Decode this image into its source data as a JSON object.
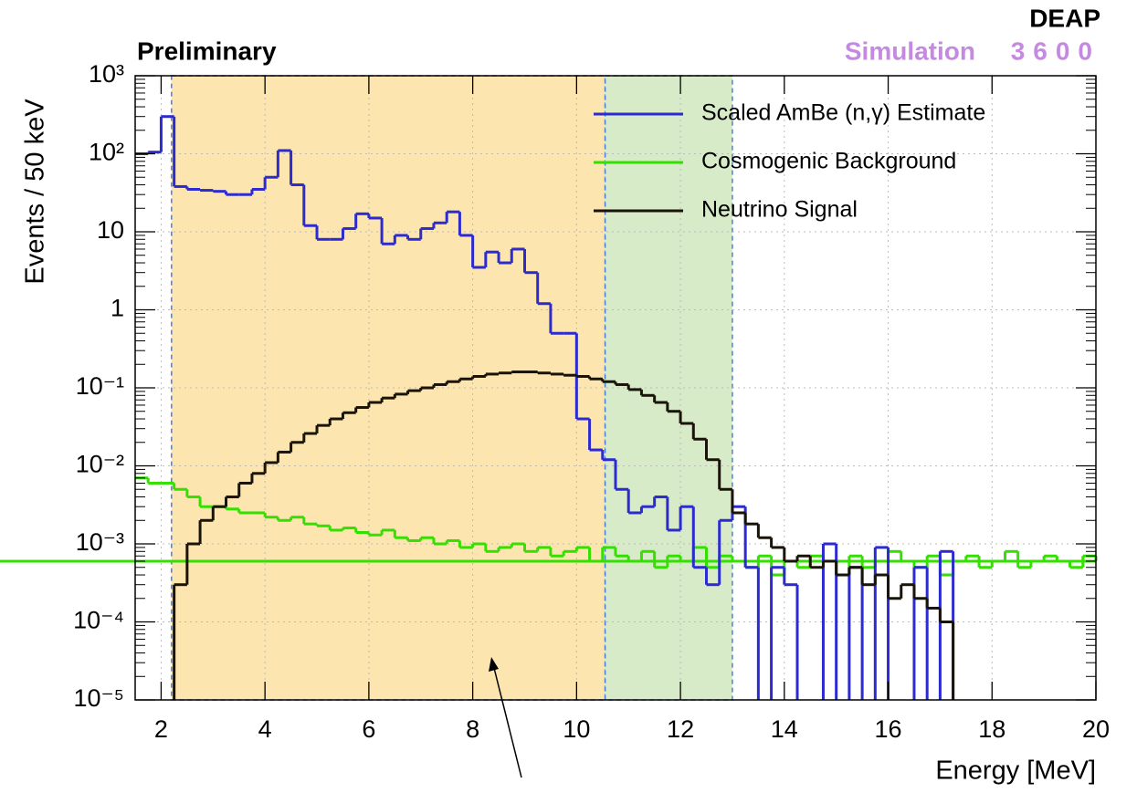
{
  "chart_data": {
    "type": "histogram",
    "title": "Preliminary",
    "experiment": "DEAP",
    "subtitle": "Simulation",
    "detector": "3600",
    "xlabel": "Energy [MeV]",
    "ylabel": "Events / 50 keV",
    "log_y": true,
    "grid": true,
    "legend": "upper right",
    "xlim": [
      1.5,
      20
    ],
    "ylim": [
      1e-05,
      1000
    ],
    "xticks": [
      2,
      4,
      6,
      8,
      10,
      12,
      14,
      16,
      18,
      20
    ],
    "yticks": [
      {
        "value": 1e-05,
        "label": "10⁻⁵"
      },
      {
        "value": 0.0001,
        "label": "10⁻⁴"
      },
      {
        "value": 0.001,
        "label": "10⁻³"
      },
      {
        "value": 0.01,
        "label": "10⁻²"
      },
      {
        "value": 0.1,
        "label": "10⁻¹"
      },
      1,
      10,
      {
        "value": 100,
        "label": "10²"
      },
      {
        "value": 1000,
        "label": "10³"
      }
    ],
    "regions": [
      {
        "xlim": [
          2.2,
          10.55
        ],
        "color": "#fde5b0"
      },
      {
        "xlim": [
          10.55,
          13.0
        ],
        "color": "#d8ebc9"
      }
    ],
    "bins": [
      1.5,
      1.75,
      2,
      2.25,
      2.5,
      2.75,
      3,
      3.25,
      3.5,
      3.75,
      4,
      4.25,
      4.5,
      4.75,
      5,
      5.25,
      5.5,
      5.75,
      6,
      6.25,
      6.5,
      6.75,
      7,
      7.25,
      7.5,
      7.75,
      8,
      8.25,
      8.5,
      8.75,
      9,
      9.25,
      9.5,
      9.75,
      10,
      10.25,
      10.5,
      10.75,
      11,
      11.25,
      11.5,
      11.75,
      12,
      12.25,
      12.5,
      12.75,
      13,
      13.25,
      13.5,
      13.75,
      14,
      14.25,
      14.5,
      14.75,
      15,
      15.25,
      15.5,
      15.75,
      16,
      16.25,
      16.5,
      16.75,
      17,
      17.25,
      17.5,
      17.75,
      18,
      18.25,
      18.5,
      18.75,
      19,
      19.25,
      19.5,
      19.75,
      20
    ],
    "series": [
      {
        "name": "Scaled AmBe (n,γ) Estimate",
        "color": "#2b2bd0",
        "values": [
          100,
          105,
          300,
          38,
          35,
          34,
          33,
          30,
          30,
          35,
          50,
          110,
          40,
          12,
          8,
          8,
          11,
          17,
          15,
          7,
          9,
          8,
          11,
          13,
          18,
          9,
          3.5,
          5.5,
          4,
          6,
          3,
          1.2,
          0.5,
          0.5,
          0.04,
          0.016,
          0.012,
          0.005,
          0.0025,
          0.003,
          0.004,
          0.0015,
          0.003,
          0.0005,
          0.0003,
          0.002,
          0.003,
          0.0005,
          null,
          0.0005,
          0.0003,
          null,
          null,
          0.001,
          null,
          0.0005,
          null,
          0.0009,
          null,
          null,
          0.0005,
          null,
          0.0008,
          null,
          null,
          null,
          null,
          null,
          null,
          null,
          null,
          null,
          null,
          null,
          null
        ]
      },
      {
        "name": "Cosmogenic Background",
        "color": "#33e000",
        "values": [
          0.007,
          0.006,
          0.006,
          0.005,
          0.004,
          0.003,
          0.003,
          0.0028,
          0.0025,
          0.0025,
          0.0022,
          0.002,
          0.0022,
          0.0018,
          0.0017,
          0.0015,
          0.0016,
          0.0014,
          0.0013,
          0.0015,
          0.0012,
          0.0011,
          0.0012,
          0.001,
          0.0011,
          0.0009,
          0.001,
          0.0008,
          0.0009,
          0.001,
          0.0008,
          0.0009,
          0.0007,
          0.0008,
          0.0009,
          0.0006,
          0.0009,
          0.0007,
          0.0006,
          0.0008,
          0.0005,
          0.0007,
          0.0006,
          0.0009,
          0.0005,
          0.0007,
          0.0006,
          0.0005,
          0.0007,
          0.0004,
          0.0006,
          0.0005,
          0.0007,
          0.0006,
          0.0004,
          0.0007,
          0.0005,
          0.0006,
          0.0008,
          0.0006,
          0.0005,
          0.0007,
          0.0004,
          0.0006,
          0.0007,
          0.0005,
          0.0006,
          0.0008,
          0.0005,
          0.0006,
          0.0007,
          0.0006,
          0.0005,
          0.0007,
          0.0006
        ]
      },
      {
        "name": "Neutrino Signal",
        "color": "#1a1408",
        "values": [
          null,
          null,
          null,
          0.0003,
          0.001,
          0.002,
          0.003,
          0.004,
          0.006,
          0.008,
          0.011,
          0.015,
          0.02,
          0.026,
          0.033,
          0.04,
          0.048,
          0.056,
          0.065,
          0.074,
          0.083,
          0.092,
          0.1,
          0.11,
          0.12,
          0.13,
          0.14,
          0.15,
          0.155,
          0.16,
          0.16,
          0.155,
          0.15,
          0.145,
          0.14,
          0.13,
          0.12,
          0.11,
          0.095,
          0.08,
          0.065,
          0.05,
          0.035,
          0.022,
          0.012,
          0.005,
          0.0025,
          0.0018,
          0.0012,
          0.0009,
          0.0006,
          0.0007,
          0.0005,
          0.0006,
          0.0004,
          0.0005,
          0.0003,
          0.0004,
          0.0002,
          0.0003,
          0.0002,
          0.00015,
          0.0001,
          null,
          null,
          null,
          null,
          null,
          null,
          null,
          null,
          null,
          null,
          null,
          null
        ]
      }
    ]
  }
}
